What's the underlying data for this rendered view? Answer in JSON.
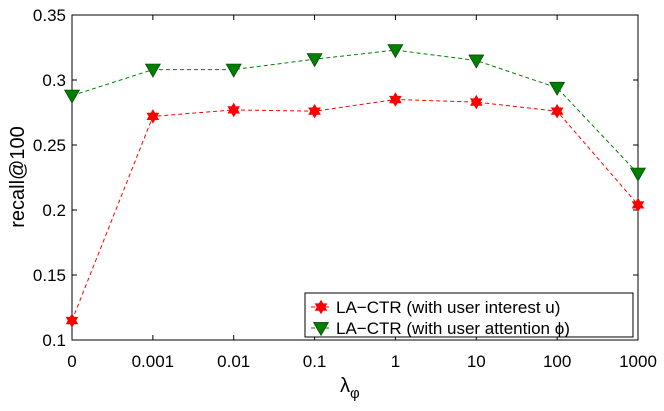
{
  "chart_data": {
    "type": "line",
    "title": "",
    "xlabel": "λ",
    "xlabel_sub": "φ",
    "ylabel": "recall@100",
    "categories": [
      "0",
      "0.001",
      "0.01",
      "0.1",
      "1",
      "10",
      "100",
      "1000"
    ],
    "ylim": [
      0.1,
      0.35
    ],
    "yticks": [
      0.1,
      0.15,
      0.2,
      0.25,
      0.3,
      0.35
    ],
    "ytick_labels": [
      "0.1",
      "0.15",
      "0.2",
      "0.25",
      "0.3",
      "0.35"
    ],
    "grid": false,
    "legend_position": "bottom-right",
    "series": [
      {
        "name": "LA−CTR (with user interest u)",
        "color": "#ff0000",
        "marker": "hexagram",
        "line_style": "dashed",
        "values": [
          0.115,
          0.272,
          0.277,
          0.276,
          0.285,
          0.283,
          0.276,
          0.204
        ]
      },
      {
        "name_prefix": "LA−CTR (with user attention ",
        "name_symbol": "ϕ",
        "name_suffix": ")",
        "color": "#008000",
        "marker": "triangle-down",
        "line_style": "dashed",
        "values": [
          0.288,
          0.308,
          0.308,
          0.316,
          0.323,
          0.315,
          0.294,
          0.228
        ]
      }
    ]
  }
}
